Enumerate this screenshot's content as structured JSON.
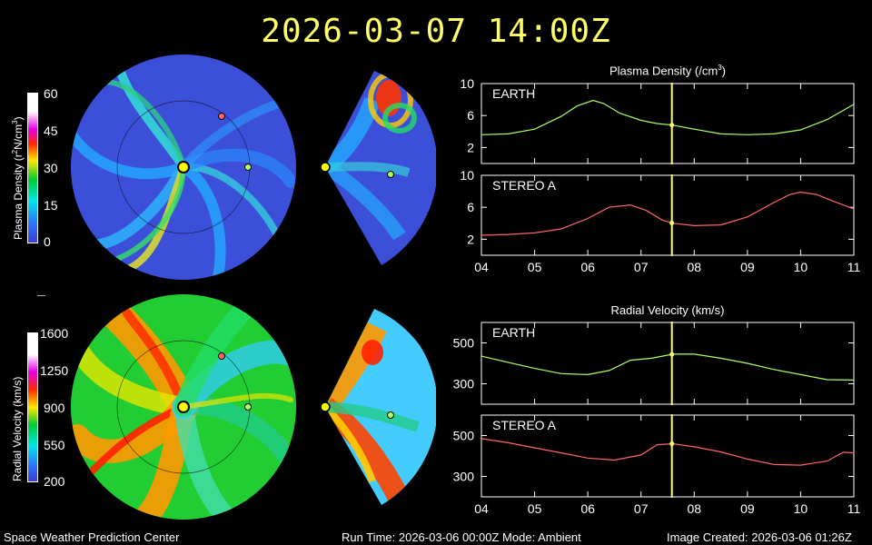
{
  "title": "2026-03-07 14:00Z",
  "density_colorbar": {
    "label_prefix": "Plasma Density (r",
    "label_sup1": "2",
    "label_mid": "N/cm",
    "label_sup2": "3",
    "label_suffix": ")",
    "ticks": [
      "60",
      "45",
      "30",
      "15",
      "0"
    ]
  },
  "velocity_colorbar": {
    "label": "Radial Velocity (km/s)",
    "ticks": [
      "1600",
      "1250",
      "900",
      "550",
      "200"
    ]
  },
  "footer": {
    "left": "Space Weather Prediction Center",
    "center": "Run Time: 2026-03-06 00:00Z  Mode: Ambient",
    "right": "Image Created: 2026-03-06 01:26Z"
  },
  "colors": {
    "earth": "#aaff66",
    "stereo_a": "#ff6666",
    "current_time_line": "#ffff66",
    "sun": "#ffff00"
  },
  "chart_data": [
    {
      "type": "line",
      "title": "Plasma Density (/cm3)",
      "panel": "EARTH",
      "ylim": [
        0,
        10
      ],
      "y_ticks": [
        2,
        6,
        10
      ],
      "x_ticks": [
        "04",
        "05",
        "06",
        "07",
        "08",
        "09",
        "10",
        "11"
      ],
      "xlim": [
        4,
        11
      ],
      "current_time": 7.58,
      "series": [
        {
          "name": "EARTH",
          "x": [
            4.0,
            4.5,
            5.0,
            5.5,
            5.8,
            6.1,
            6.3,
            6.6,
            7.0,
            7.3,
            7.6,
            8.0,
            8.5,
            9.0,
            9.5,
            10.0,
            10.5,
            11.0
          ],
          "values": [
            3.6,
            3.7,
            4.3,
            5.9,
            7.2,
            7.9,
            7.5,
            6.3,
            5.4,
            5.0,
            4.8,
            4.3,
            3.7,
            3.6,
            3.7,
            4.2,
            5.5,
            7.4
          ]
        }
      ]
    },
    {
      "type": "line",
      "panel": "STEREO A",
      "ylim": [
        0,
        10
      ],
      "y_ticks": [
        2,
        6,
        10
      ],
      "x_ticks": [
        "04",
        "05",
        "06",
        "07",
        "08",
        "09",
        "10",
        "11"
      ],
      "xlim": [
        4,
        11
      ],
      "current_time": 7.58,
      "series": [
        {
          "name": "STEREO A",
          "x": [
            4.0,
            4.5,
            5.0,
            5.5,
            6.0,
            6.4,
            6.8,
            7.1,
            7.4,
            7.6,
            8.0,
            8.5,
            9.0,
            9.5,
            9.8,
            10.0,
            10.3,
            10.6,
            11.0
          ],
          "values": [
            2.5,
            2.6,
            2.8,
            3.3,
            4.6,
            6.0,
            6.3,
            5.6,
            4.4,
            4.0,
            3.7,
            3.8,
            4.8,
            6.6,
            7.6,
            7.9,
            7.6,
            6.8,
            5.8
          ]
        }
      ]
    },
    {
      "type": "line",
      "title": "Radial Velocity (km/s)",
      "panel": "EARTH",
      "ylim": [
        200,
        600
      ],
      "y_ticks": [
        300,
        500
      ],
      "x_ticks": [
        "04",
        "05",
        "06",
        "07",
        "08",
        "09",
        "10",
        "11"
      ],
      "xlim": [
        4,
        11
      ],
      "current_time": 7.58,
      "series": [
        {
          "name": "EARTH",
          "x": [
            4.0,
            4.5,
            5.0,
            5.5,
            6.0,
            6.4,
            6.8,
            7.2,
            7.6,
            8.0,
            8.5,
            9.0,
            9.5,
            10.0,
            10.5,
            11.0
          ],
          "values": [
            435,
            405,
            375,
            350,
            345,
            365,
            415,
            425,
            445,
            445,
            425,
            400,
            370,
            345,
            320,
            318
          ]
        }
      ]
    },
    {
      "type": "line",
      "panel": "STEREO A",
      "ylim": [
        200,
        600
      ],
      "y_ticks": [
        300,
        500
      ],
      "x_ticks": [
        "04",
        "05",
        "06",
        "07",
        "08",
        "09",
        "10",
        "11"
      ],
      "xlim": [
        4,
        11
      ],
      "current_time": 7.58,
      "series": [
        {
          "name": "STEREO A",
          "x": [
            4.0,
            4.5,
            5.0,
            5.5,
            6.0,
            6.5,
            7.0,
            7.3,
            7.6,
            8.0,
            8.5,
            9.0,
            9.5,
            10.0,
            10.5,
            10.8,
            11.0
          ],
          "values": [
            485,
            465,
            440,
            415,
            390,
            380,
            405,
            455,
            460,
            445,
            420,
            385,
            358,
            355,
            375,
            418,
            415
          ]
        }
      ]
    }
  ]
}
